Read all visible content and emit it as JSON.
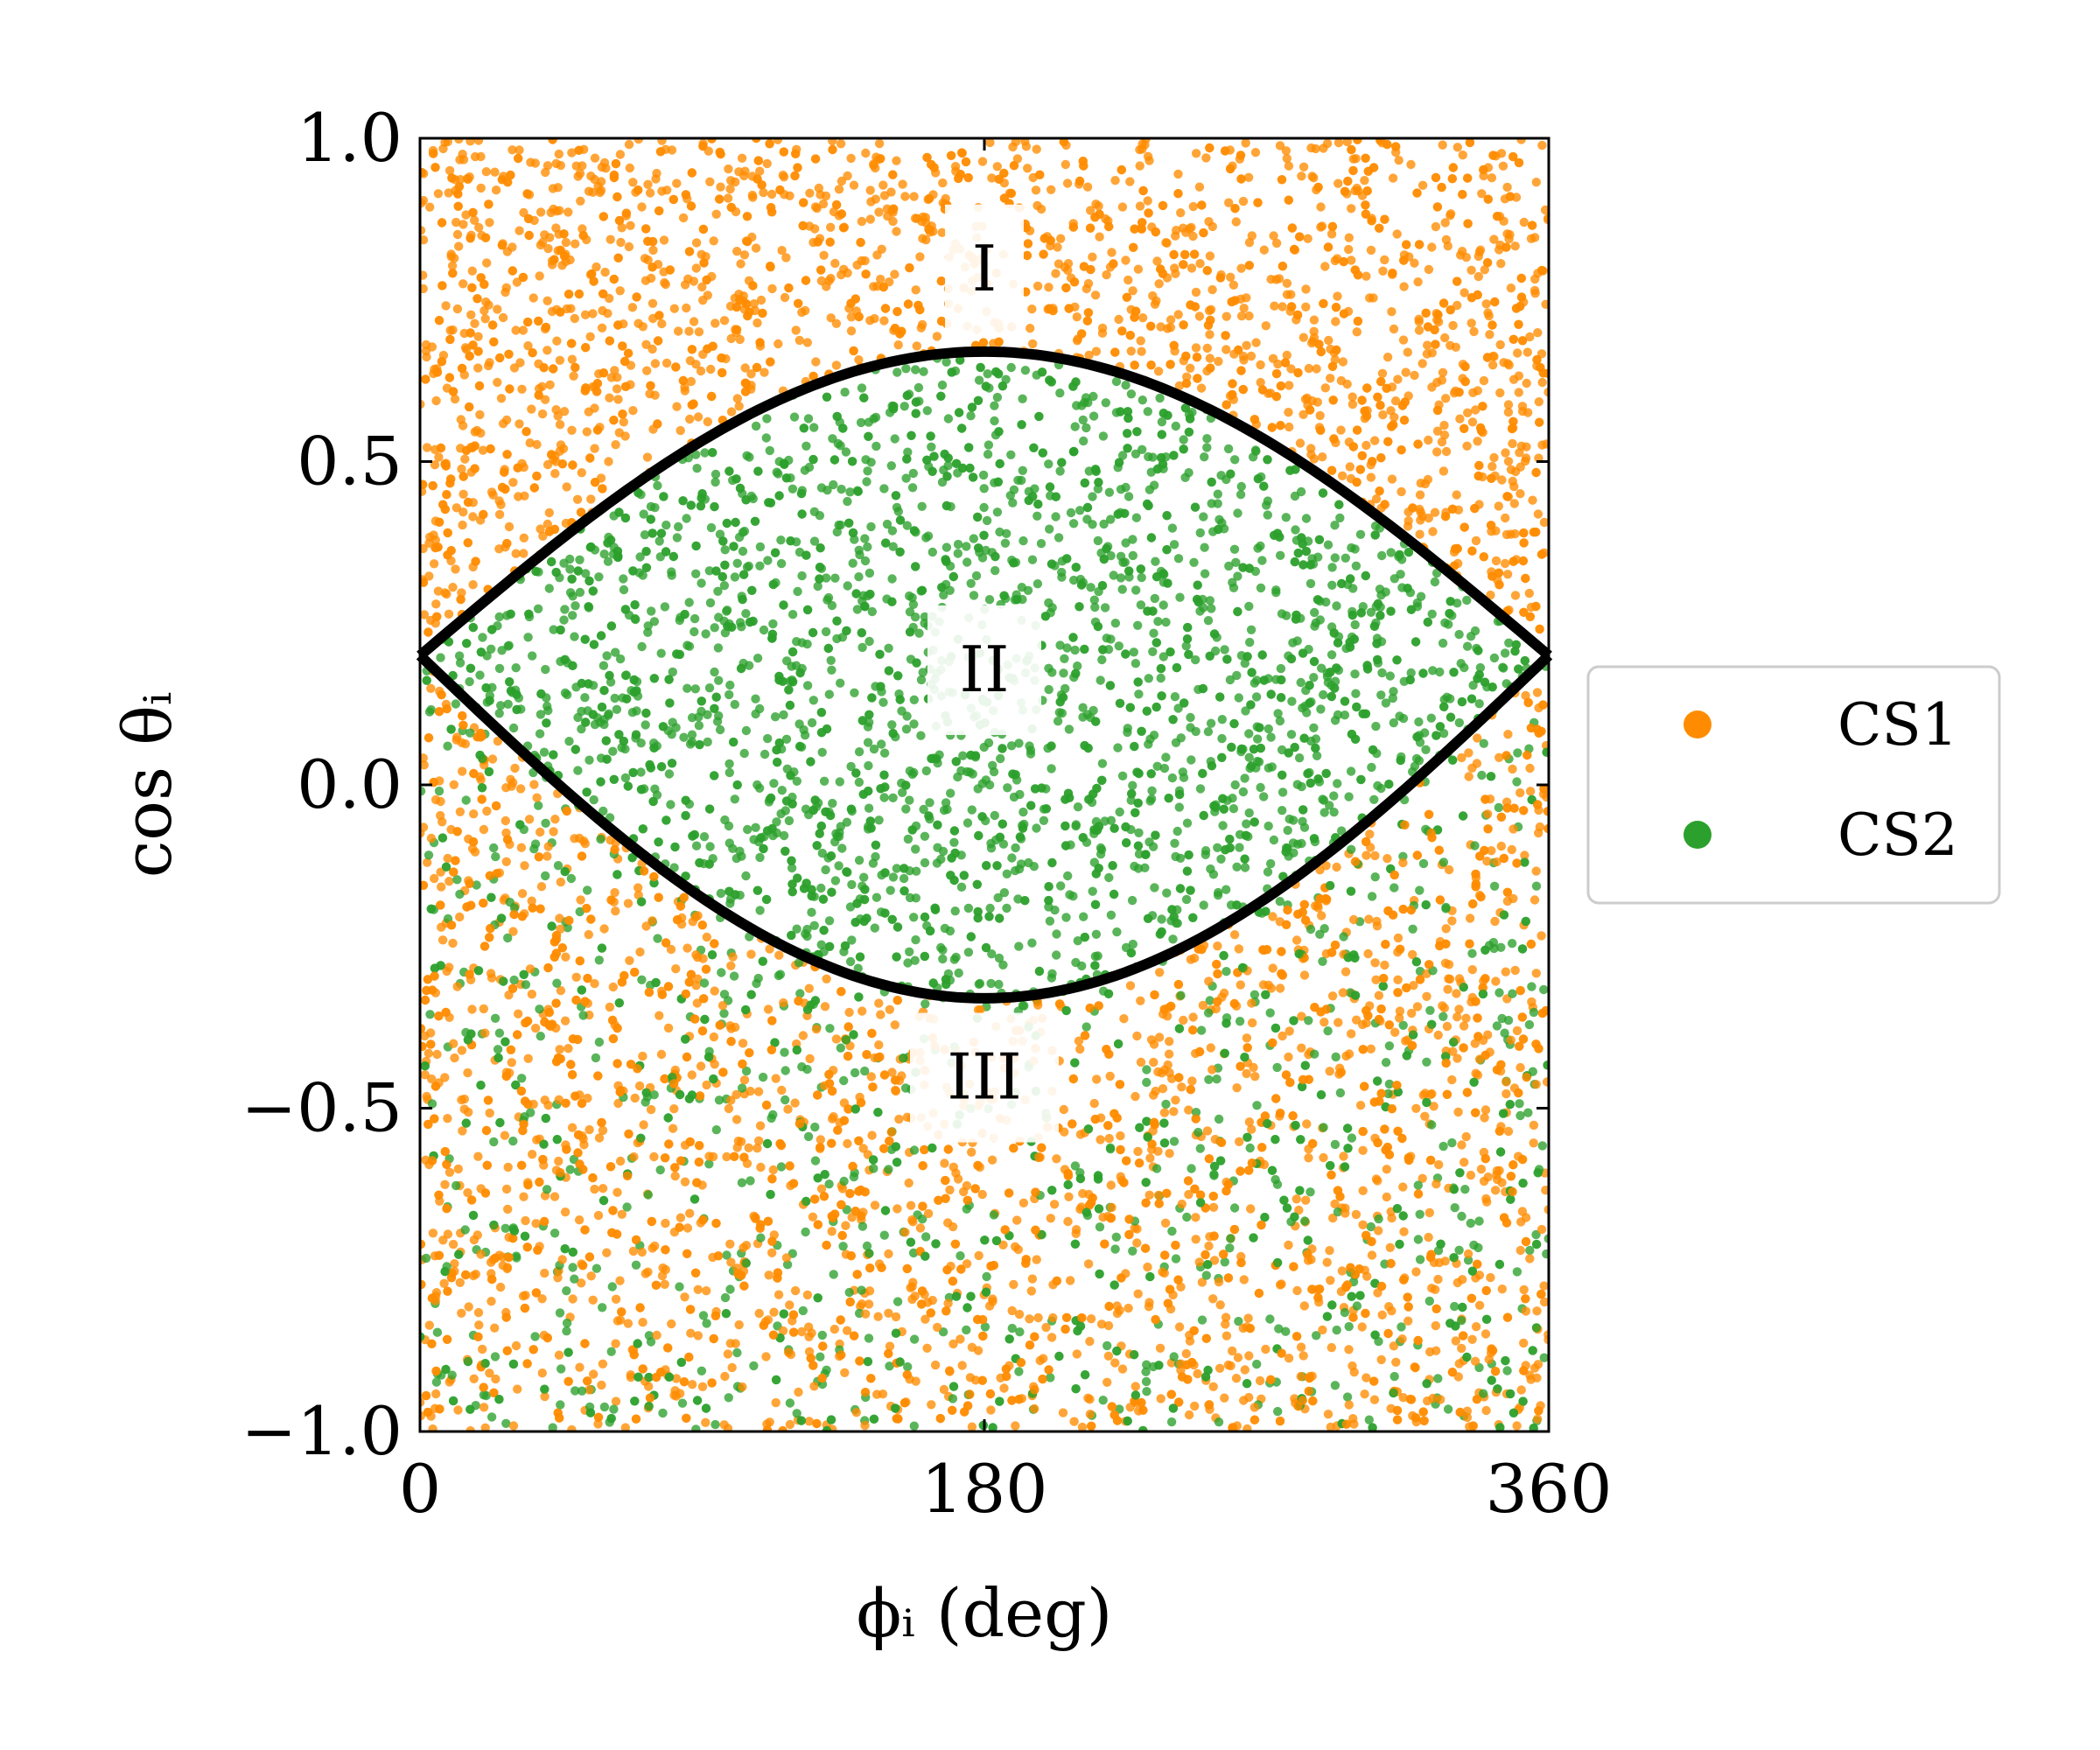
{
  "chart_data": {
    "type": "scatter",
    "title": "",
    "xlabel": "ϕᵢ (deg)",
    "ylabel": "cos θᵢ",
    "xlim": [
      0,
      360
    ],
    "ylim": [
      -1.0,
      1.0
    ],
    "xticks": [
      "0",
      "180",
      "360"
    ],
    "yticks": [
      "−1.0",
      "−0.5",
      "0.0",
      "0.5",
      "1.0"
    ],
    "xtick_values": [
      0,
      180,
      360
    ],
    "ytick_values": [
      -1.0,
      -0.5,
      0.0,
      0.5,
      1.0
    ],
    "grid": false,
    "legend": {
      "placement": "outside-right",
      "entries": [
        "CS1",
        "CS2"
      ]
    },
    "series": [
      {
        "name": "CS1",
        "color": "#ff8c00",
        "description": "uniform scatter over regions I and III"
      },
      {
        "name": "CS2",
        "color": "#2ca02c",
        "description": "fills region II, sparse in region III"
      }
    ],
    "boundary_curves": [
      {
        "name": "upper",
        "points": [
          [
            0,
            0.2
          ],
          [
            45,
            0.36
          ],
          [
            90,
            0.53
          ],
          [
            135,
            0.64
          ],
          [
            180,
            0.67
          ],
          [
            225,
            0.64
          ],
          [
            270,
            0.53
          ],
          [
            315,
            0.36
          ],
          [
            360,
            0.2
          ]
        ]
      },
      {
        "name": "lower",
        "points": [
          [
            0,
            0.2
          ],
          [
            45,
            0.03
          ],
          [
            90,
            -0.15
          ],
          [
            135,
            -0.28
          ],
          [
            180,
            -0.33
          ],
          [
            225,
            -0.28
          ],
          [
            270,
            -0.15
          ],
          [
            315,
            0.03
          ],
          [
            360,
            0.2
          ]
        ]
      }
    ],
    "annotations": [
      {
        "text": "I",
        "x": 180,
        "y": 0.8
      },
      {
        "text": "II",
        "x": 180,
        "y": 0.18
      },
      {
        "text": "III",
        "x": 180,
        "y": -0.45
      }
    ]
  }
}
